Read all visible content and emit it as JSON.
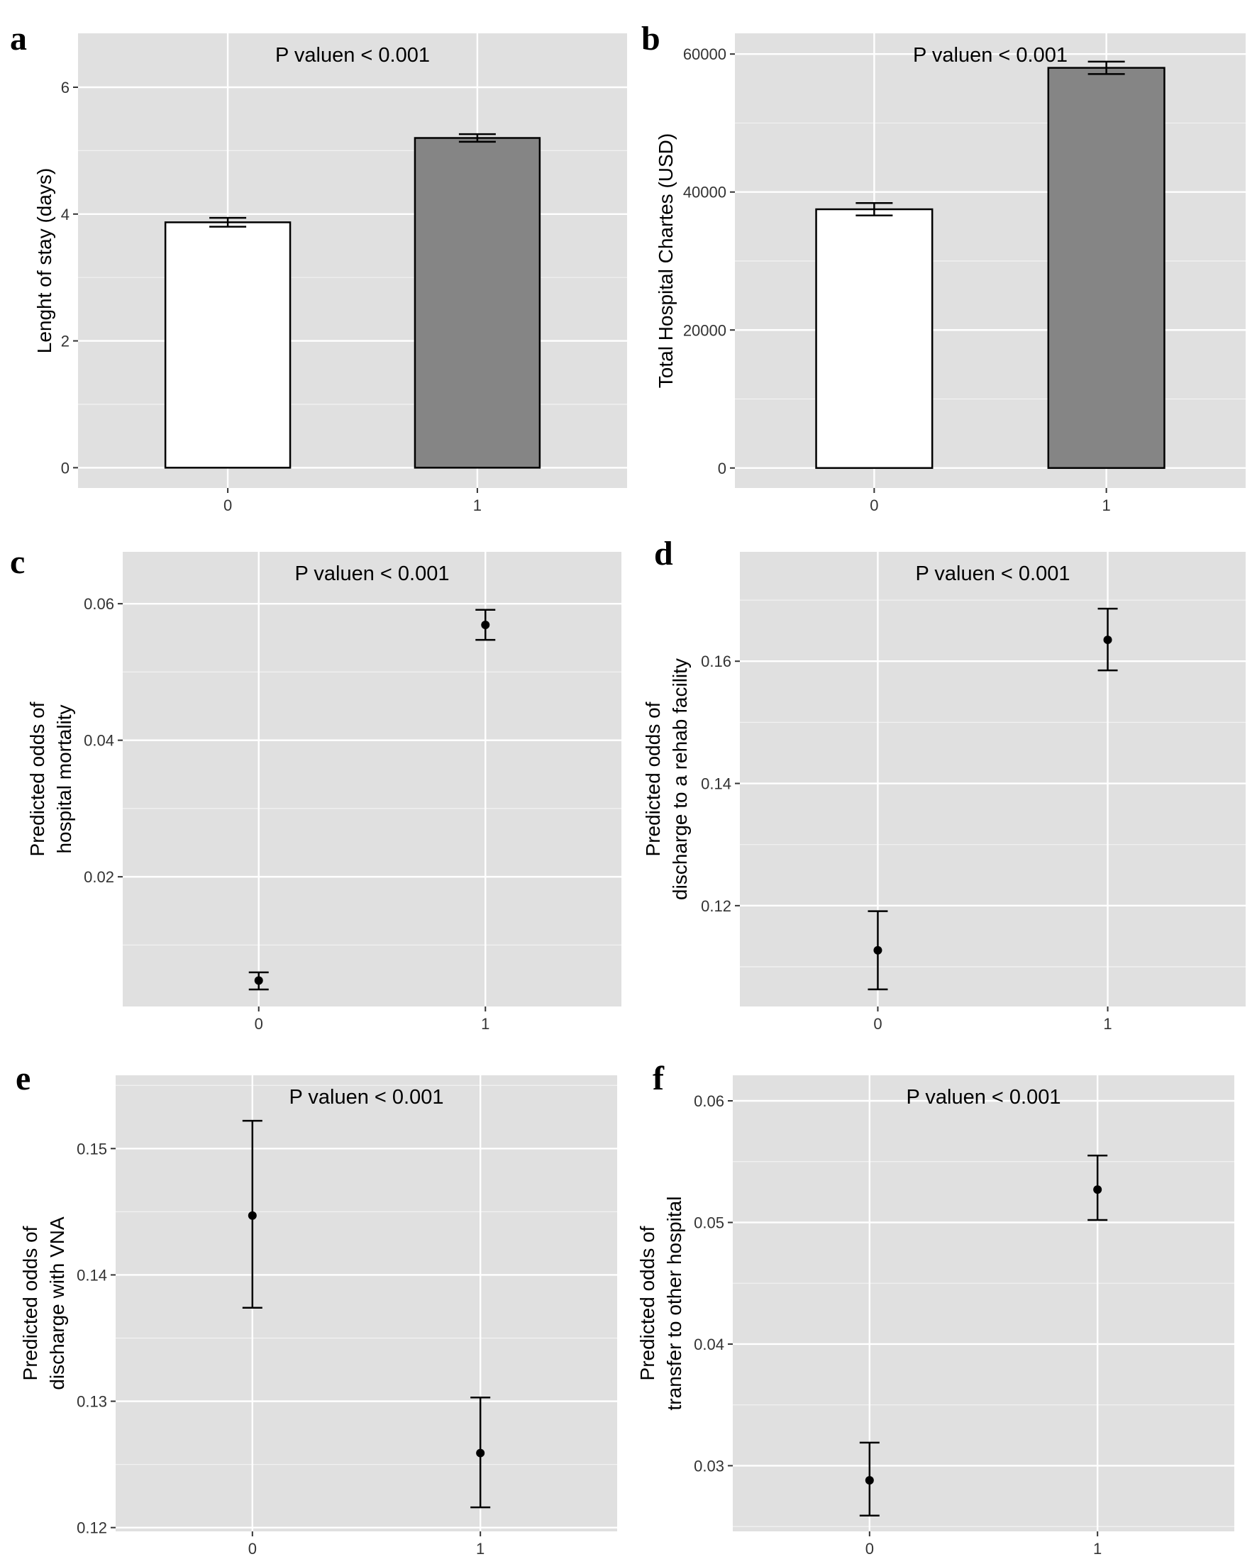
{
  "chart_data": [
    {
      "panel": "a",
      "type": "bar",
      "annotation": "P valuen < 0.001",
      "categories": [
        "0",
        "1"
      ],
      "values": [
        3.87,
        5.2
      ],
      "error_low": [
        3.8,
        5.14
      ],
      "error_high": [
        3.94,
        5.26
      ],
      "bar_colors": [
        "#ffffff",
        "#858585"
      ],
      "xlabel": "",
      "ylabel": "Lenght of stay (days)",
      "ylim": [
        -0.32,
        6.85
      ],
      "yticks": [
        0,
        2,
        4,
        6
      ],
      "ytick_labels": [
        "0",
        "2",
        "4",
        "6"
      ],
      "grid": true
    },
    {
      "panel": "b",
      "type": "bar",
      "annotation": "P valuen < 0.001",
      "categories": [
        "0",
        "1"
      ],
      "values": [
        37500,
        58000
      ],
      "error_low": [
        36600,
        57100
      ],
      "error_high": [
        38400,
        58900
      ],
      "bar_colors": [
        "#ffffff",
        "#858585"
      ],
      "xlabel": "",
      "ylabel": "Total Hospital Chartes (USD)",
      "ylim": [
        -2900,
        63000
      ],
      "yticks": [
        0,
        20000,
        40000,
        60000
      ],
      "ytick_labels": [
        "0",
        "20000",
        "40000",
        "60000"
      ],
      "grid": true
    },
    {
      "panel": "c",
      "type": "scatter",
      "annotation": "P valuen < 0.001",
      "categories": [
        "0",
        "1"
      ],
      "values": [
        0.0048,
        0.0569
      ],
      "error_low": [
        0.0035,
        0.0547
      ],
      "error_high": [
        0.006,
        0.0591
      ],
      "xlabel": "",
      "ylabel": [
        "Predicted odds of",
        "hospital mortality"
      ],
      "ylim": [
        0.001,
        0.0676
      ],
      "yticks": [
        0.02,
        0.04,
        0.06
      ],
      "ytick_labels": [
        "0.02",
        "0.04",
        "0.06"
      ],
      "grid": true
    },
    {
      "panel": "d",
      "type": "scatter",
      "annotation": "P valuen < 0.001",
      "categories": [
        "0",
        "1"
      ],
      "values": [
        0.1127,
        0.1635
      ],
      "error_low": [
        0.1063,
        0.1585
      ],
      "error_high": [
        0.1191,
        0.1686
      ],
      "xlabel": "",
      "ylabel": [
        "Predicted odds of",
        "discharge to a rehab facility"
      ],
      "ylim": [
        0.1035,
        0.1779
      ],
      "yticks": [
        0.12,
        0.14,
        0.16
      ],
      "ytick_labels": [
        "0.12",
        "0.14",
        "0.16"
      ],
      "grid": true
    },
    {
      "panel": "e",
      "type": "scatter",
      "annotation": "P valuen < 0.001",
      "categories": [
        "0",
        "1"
      ],
      "values": [
        0.1447,
        0.1259
      ],
      "error_low": [
        0.1374,
        0.1216
      ],
      "error_high": [
        0.1522,
        0.1303
      ],
      "xlabel": "",
      "ylabel": [
        "Predicted odds of",
        "discharge with VNA"
      ],
      "ylim": [
        0.1197,
        0.1558
      ],
      "yticks": [
        0.12,
        0.13,
        0.14,
        0.15
      ],
      "ytick_labels": [
        "0.12",
        "0.13",
        "0.14",
        "0.15"
      ],
      "grid": true
    },
    {
      "panel": "f",
      "type": "scatter",
      "annotation": "P valuen < 0.001",
      "categories": [
        "0",
        "1"
      ],
      "values": [
        0.0288,
        0.0527
      ],
      "error_low": [
        0.0259,
        0.0502
      ],
      "error_high": [
        0.0319,
        0.0555
      ],
      "xlabel": "",
      "ylabel": [
        "Predicted odds of",
        "transfer to other hospital"
      ],
      "ylim": [
        0.0246,
        0.0621
      ],
      "yticks": [
        0.03,
        0.04,
        0.05,
        0.06
      ],
      "ytick_labels": [
        "0.03",
        "0.04",
        "0.05",
        "0.06"
      ],
      "grid": true
    }
  ]
}
